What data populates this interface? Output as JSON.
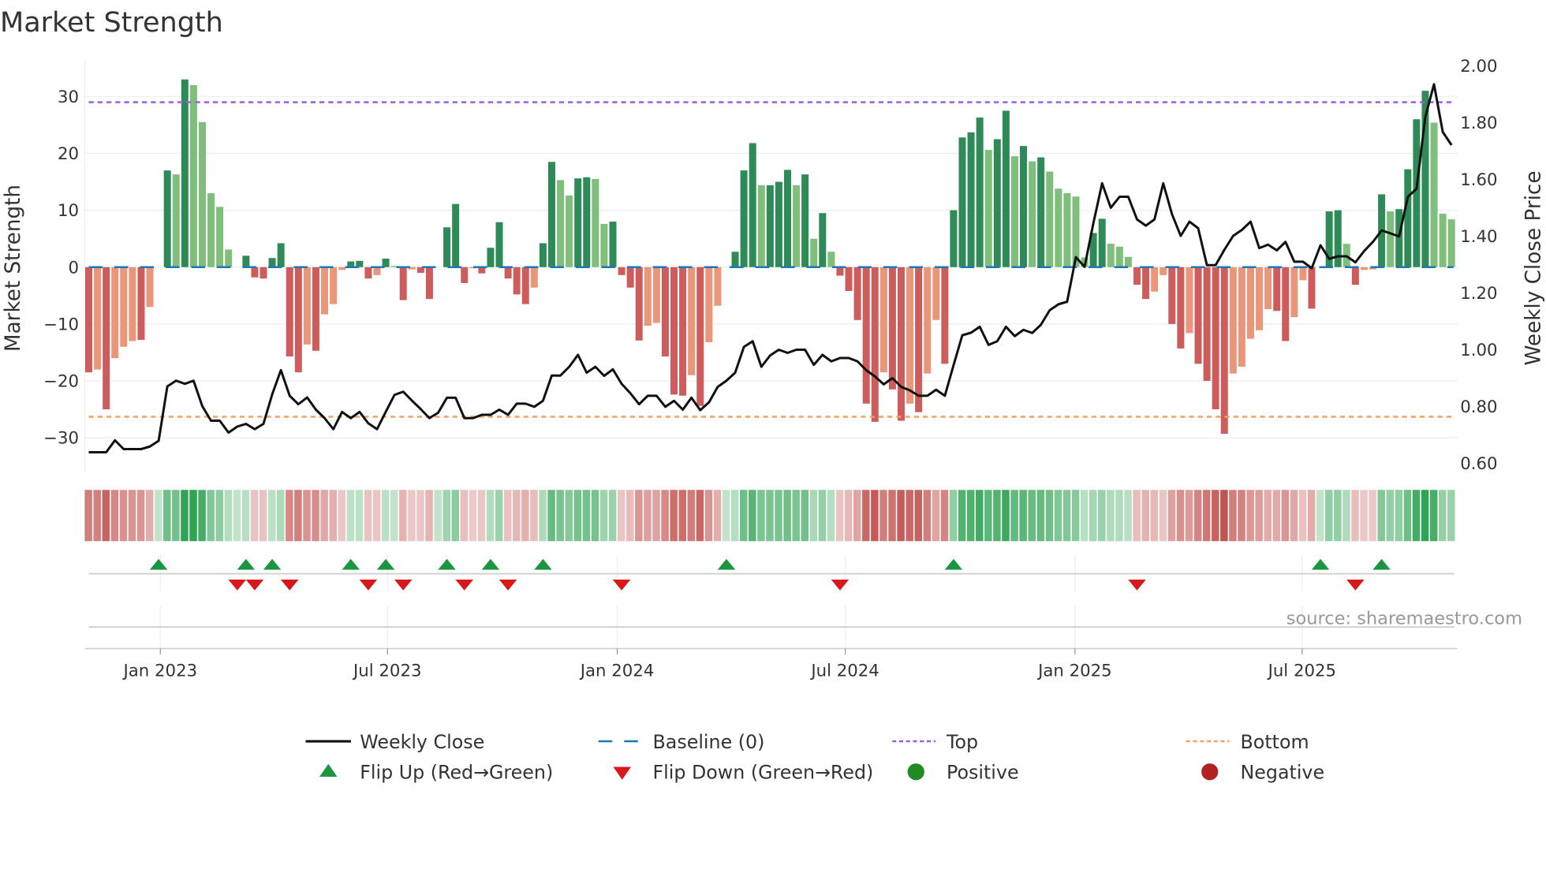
{
  "chart_data": {
    "type": "bar",
    "title": "Market Strength",
    "ylabel": "Market Strength",
    "y2label": "Weekly Close Price",
    "ylim": [
      -35,
      36
    ],
    "y2lim": [
      0.58,
      2.04
    ],
    "yticks": [
      30,
      20,
      10,
      0,
      -10,
      -20,
      -30
    ],
    "ytick_labels": [
      "30",
      "20",
      "10",
      "0",
      "−10",
      "−20",
      "−30"
    ],
    "y2ticks": [
      2.0,
      1.8,
      1.6,
      1.4,
      1.2,
      1.0,
      0.8,
      0.6
    ],
    "y2tick_labels": [
      "2.00",
      "1.80",
      "1.60",
      "1.40",
      "1.20",
      "1.00",
      "0.80",
      "0.60"
    ],
    "x_start": "2022-11-04",
    "x_step_days": 7,
    "xticks_week_index": [
      8.2,
      34.2,
      60.5,
      86.6,
      112.9,
      138.9
    ],
    "xtick_labels": [
      "Jan 2023",
      "Jul 2023",
      "Jan 2024",
      "Jul 2024",
      "Jan 2025",
      "Jul 2025"
    ],
    "top_level": 29,
    "bottom_level": -26.3,
    "baseline": 0,
    "strength": [
      -18.5,
      -18,
      -25,
      -16,
      -14,
      -13,
      -12.8,
      -7,
      0,
      17,
      16.3,
      33,
      32,
      25.5,
      13,
      10.6,
      3.1,
      0,
      2,
      -1.8,
      -2,
      1.6,
      4.2,
      -15.7,
      -18.5,
      -13.6,
      -14.7,
      -8.3,
      -6.5,
      -0.5,
      1,
      1.1,
      -2,
      -1.4,
      1.5,
      0.2,
      -5.8,
      -0.4,
      -1,
      -5.6,
      0,
      7,
      11.1,
      -2.8,
      -0.2,
      -1.1,
      3.4,
      7.9,
      -2,
      -4.8,
      -6.5,
      -3.6,
      4.2,
      18.5,
      15.3,
      12.6,
      15.6,
      15.8,
      15.5,
      7.6,
      8,
      -1.4,
      -3.6,
      -12.9,
      -10.3,
      -9.8,
      -15.7,
      -22.4,
      -22.6,
      -19,
      -24.4,
      -13.2,
      -6.8,
      0,
      2.7,
      17,
      21.8,
      14.4,
      14.4,
      15,
      17.1,
      14.4,
      16.3,
      5,
      9.5,
      2.7,
      -1.5,
      -4.2,
      -9.3,
      -24,
      -27.2,
      -18.5,
      -21.5,
      -27,
      -24,
      -25.5,
      -18.7,
      -9.3,
      -17,
      10,
      22.8,
      23.7,
      26.3,
      20.6,
      22.5,
      27.5,
      19.5,
      21.3,
      18.6,
      19.3,
      16.8,
      13.8,
      13,
      12.4,
      1.7,
      6,
      8.5,
      4.1,
      3.6,
      1.8,
      -3.1,
      -5.6,
      -4.3,
      -1.4,
      -10,
      -14.3,
      -11.6,
      -17,
      -20,
      -25,
      -29.3,
      -18.7,
      -17.5,
      -12.6,
      -11.1,
      -7.4,
      -7.7,
      -13,
      -8.8,
      -2.3,
      -7.3,
      0,
      9.8,
      10,
      4.1,
      -3.1,
      -0.5,
      -0.4,
      12.8,
      9.8,
      10.2,
      17.2,
      26,
      31,
      25.4,
      9.4,
      8.4
    ],
    "strengthening": [
      1,
      0,
      1,
      0,
      0,
      0,
      1,
      0,
      0,
      1,
      0,
      1,
      0,
      0,
      0,
      0,
      0,
      0,
      1,
      1,
      1,
      1,
      1,
      1,
      1,
      0,
      1,
      0,
      0,
      0,
      1,
      1,
      1,
      0,
      1,
      0,
      1,
      0,
      1,
      1,
      0,
      1,
      1,
      1,
      0,
      1,
      1,
      1,
      1,
      1,
      1,
      0,
      1,
      1,
      0,
      0,
      1,
      1,
      0,
      0,
      1,
      1,
      1,
      1,
      0,
      0,
      1,
      1,
      1,
      0,
      1,
      0,
      0,
      0,
      1,
      1,
      1,
      0,
      1,
      1,
      1,
      0,
      1,
      0,
      1,
      0,
      1,
      1,
      1,
      1,
      1,
      0,
      1,
      1,
      0,
      1,
      0,
      0,
      1,
      1,
      1,
      1,
      1,
      0,
      1,
      1,
      0,
      1,
      0,
      1,
      0,
      0,
      0,
      0,
      0,
      1,
      1,
      0,
      0,
      0,
      1,
      1,
      0,
      0,
      1,
      1,
      0,
      1,
      1,
      1,
      1,
      0,
      0,
      0,
      0,
      0,
      1,
      1,
      0,
      0,
      1,
      0,
      1,
      1,
      0,
      1,
      0,
      0,
      1,
      0,
      1,
      1,
      1,
      1,
      0,
      0,
      0
    ],
    "weekly_close": [
      0.639,
      0.639,
      0.639,
      0.681,
      0.65,
      0.65,
      0.65,
      0.659,
      0.679,
      0.871,
      0.891,
      0.88,
      0.891,
      0.801,
      0.75,
      0.75,
      0.708,
      0.729,
      0.739,
      0.72,
      0.739,
      0.843,
      0.928,
      0.838,
      0.808,
      0.832,
      0.789,
      0.759,
      0.72,
      0.781,
      0.759,
      0.781,
      0.741,
      0.72,
      0.781,
      0.841,
      0.852,
      0.821,
      0.791,
      0.759,
      0.778,
      0.831,
      0.831,
      0.759,
      0.759,
      0.771,
      0.771,
      0.789,
      0.771,
      0.81,
      0.81,
      0.799,
      0.82,
      0.909,
      0.909,
      0.94,
      0.982,
      0.919,
      0.94,
      0.908,
      0.931,
      0.88,
      0.847,
      0.808,
      0.838,
      0.838,
      0.799,
      0.82,
      0.789,
      0.831,
      0.787,
      0.815,
      0.869,
      0.891,
      0.919,
      1.01,
      1.03,
      0.94,
      0.98,
      1.0,
      0.989,
      1.0,
      1.0,
      0.947,
      0.982,
      0.959,
      0.971,
      0.971,
      0.959,
      0.928,
      0.906,
      0.878,
      0.9,
      0.869,
      0.857,
      0.838,
      0.838,
      0.859,
      0.838,
      0.945,
      1.051,
      1.06,
      1.081,
      1.017,
      1.03,
      1.081,
      1.048,
      1.07,
      1.059,
      1.088,
      1.139,
      1.16,
      1.169,
      1.326,
      1.292,
      1.445,
      1.586,
      1.5,
      1.539,
      1.539,
      1.459,
      1.437,
      1.459,
      1.586,
      1.478,
      1.401,
      1.451,
      1.428,
      1.298,
      1.298,
      1.352,
      1.401,
      1.422,
      1.451,
      1.358,
      1.37,
      1.35,
      1.38,
      1.31,
      1.31,
      1.287,
      1.368,
      1.32,
      1.329,
      1.329,
      1.308,
      1.348,
      1.38,
      1.42,
      1.41,
      1.399,
      1.539,
      1.567,
      1.82,
      1.935,
      1.767,
      1.721
    ],
    "flip_up_week_index": [
      8,
      18,
      21,
      30,
      34,
      41,
      46,
      52,
      73,
      99,
      141,
      148
    ],
    "flip_down_week_index": [
      17,
      19,
      23,
      32,
      36,
      43,
      48,
      61,
      86,
      120,
      145
    ],
    "legend": [
      {
        "key": "close",
        "label": "Weekly Close"
      },
      {
        "key": "baseline",
        "label": "Baseline (0)"
      },
      {
        "key": "top",
        "label": "Top"
      },
      {
        "key": "bottom",
        "label": "Bottom"
      },
      {
        "key": "flip_up",
        "label": "Flip Up (Red→Green)"
      },
      {
        "key": "flip_down",
        "label": "Flip Down (Green→Red)"
      },
      {
        "key": "positive",
        "label": "Positive"
      },
      {
        "key": "negative",
        "label": "Negative"
      }
    ],
    "legend_placement": "bottom",
    "source": "source: sharemaestro.com"
  },
  "colors": {
    "pos_strong": "#2e8b57",
    "pos_weak": "#7fbf7b",
    "neg_strong": "#cd5c5c",
    "neg_weak": "#e9967a",
    "close": "#111111",
    "baseline": "#1f77b4",
    "top": "#9b5de5",
    "bottom": "#f4a261",
    "flip_up": "#1a9641",
    "flip_down": "#d7191c",
    "positive": "#228b22",
    "negative": "#b22222"
  }
}
